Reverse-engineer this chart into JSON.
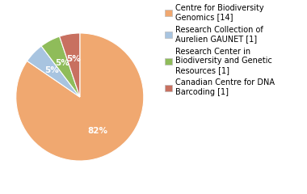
{
  "labels": [
    "Centre for Biodiversity\nGenomics [14]",
    "Research Collection of\nAurelien GAUNET [1]",
    "Research Center in\nBiodiversity and Genetic\nResources [1]",
    "Canadian Centre for DNA\nBarcoding [1]"
  ],
  "values": [
    82,
    5,
    5,
    5
  ],
  "colors": [
    "#f0a870",
    "#a8c4e0",
    "#8fbc5a",
    "#c87060"
  ],
  "pct_labels": [
    "82%",
    "5%",
    "5%",
    "5%"
  ],
  "background_color": "#ffffff",
  "legend_fontsize": 7.0,
  "pct_fontsize": 7.5
}
